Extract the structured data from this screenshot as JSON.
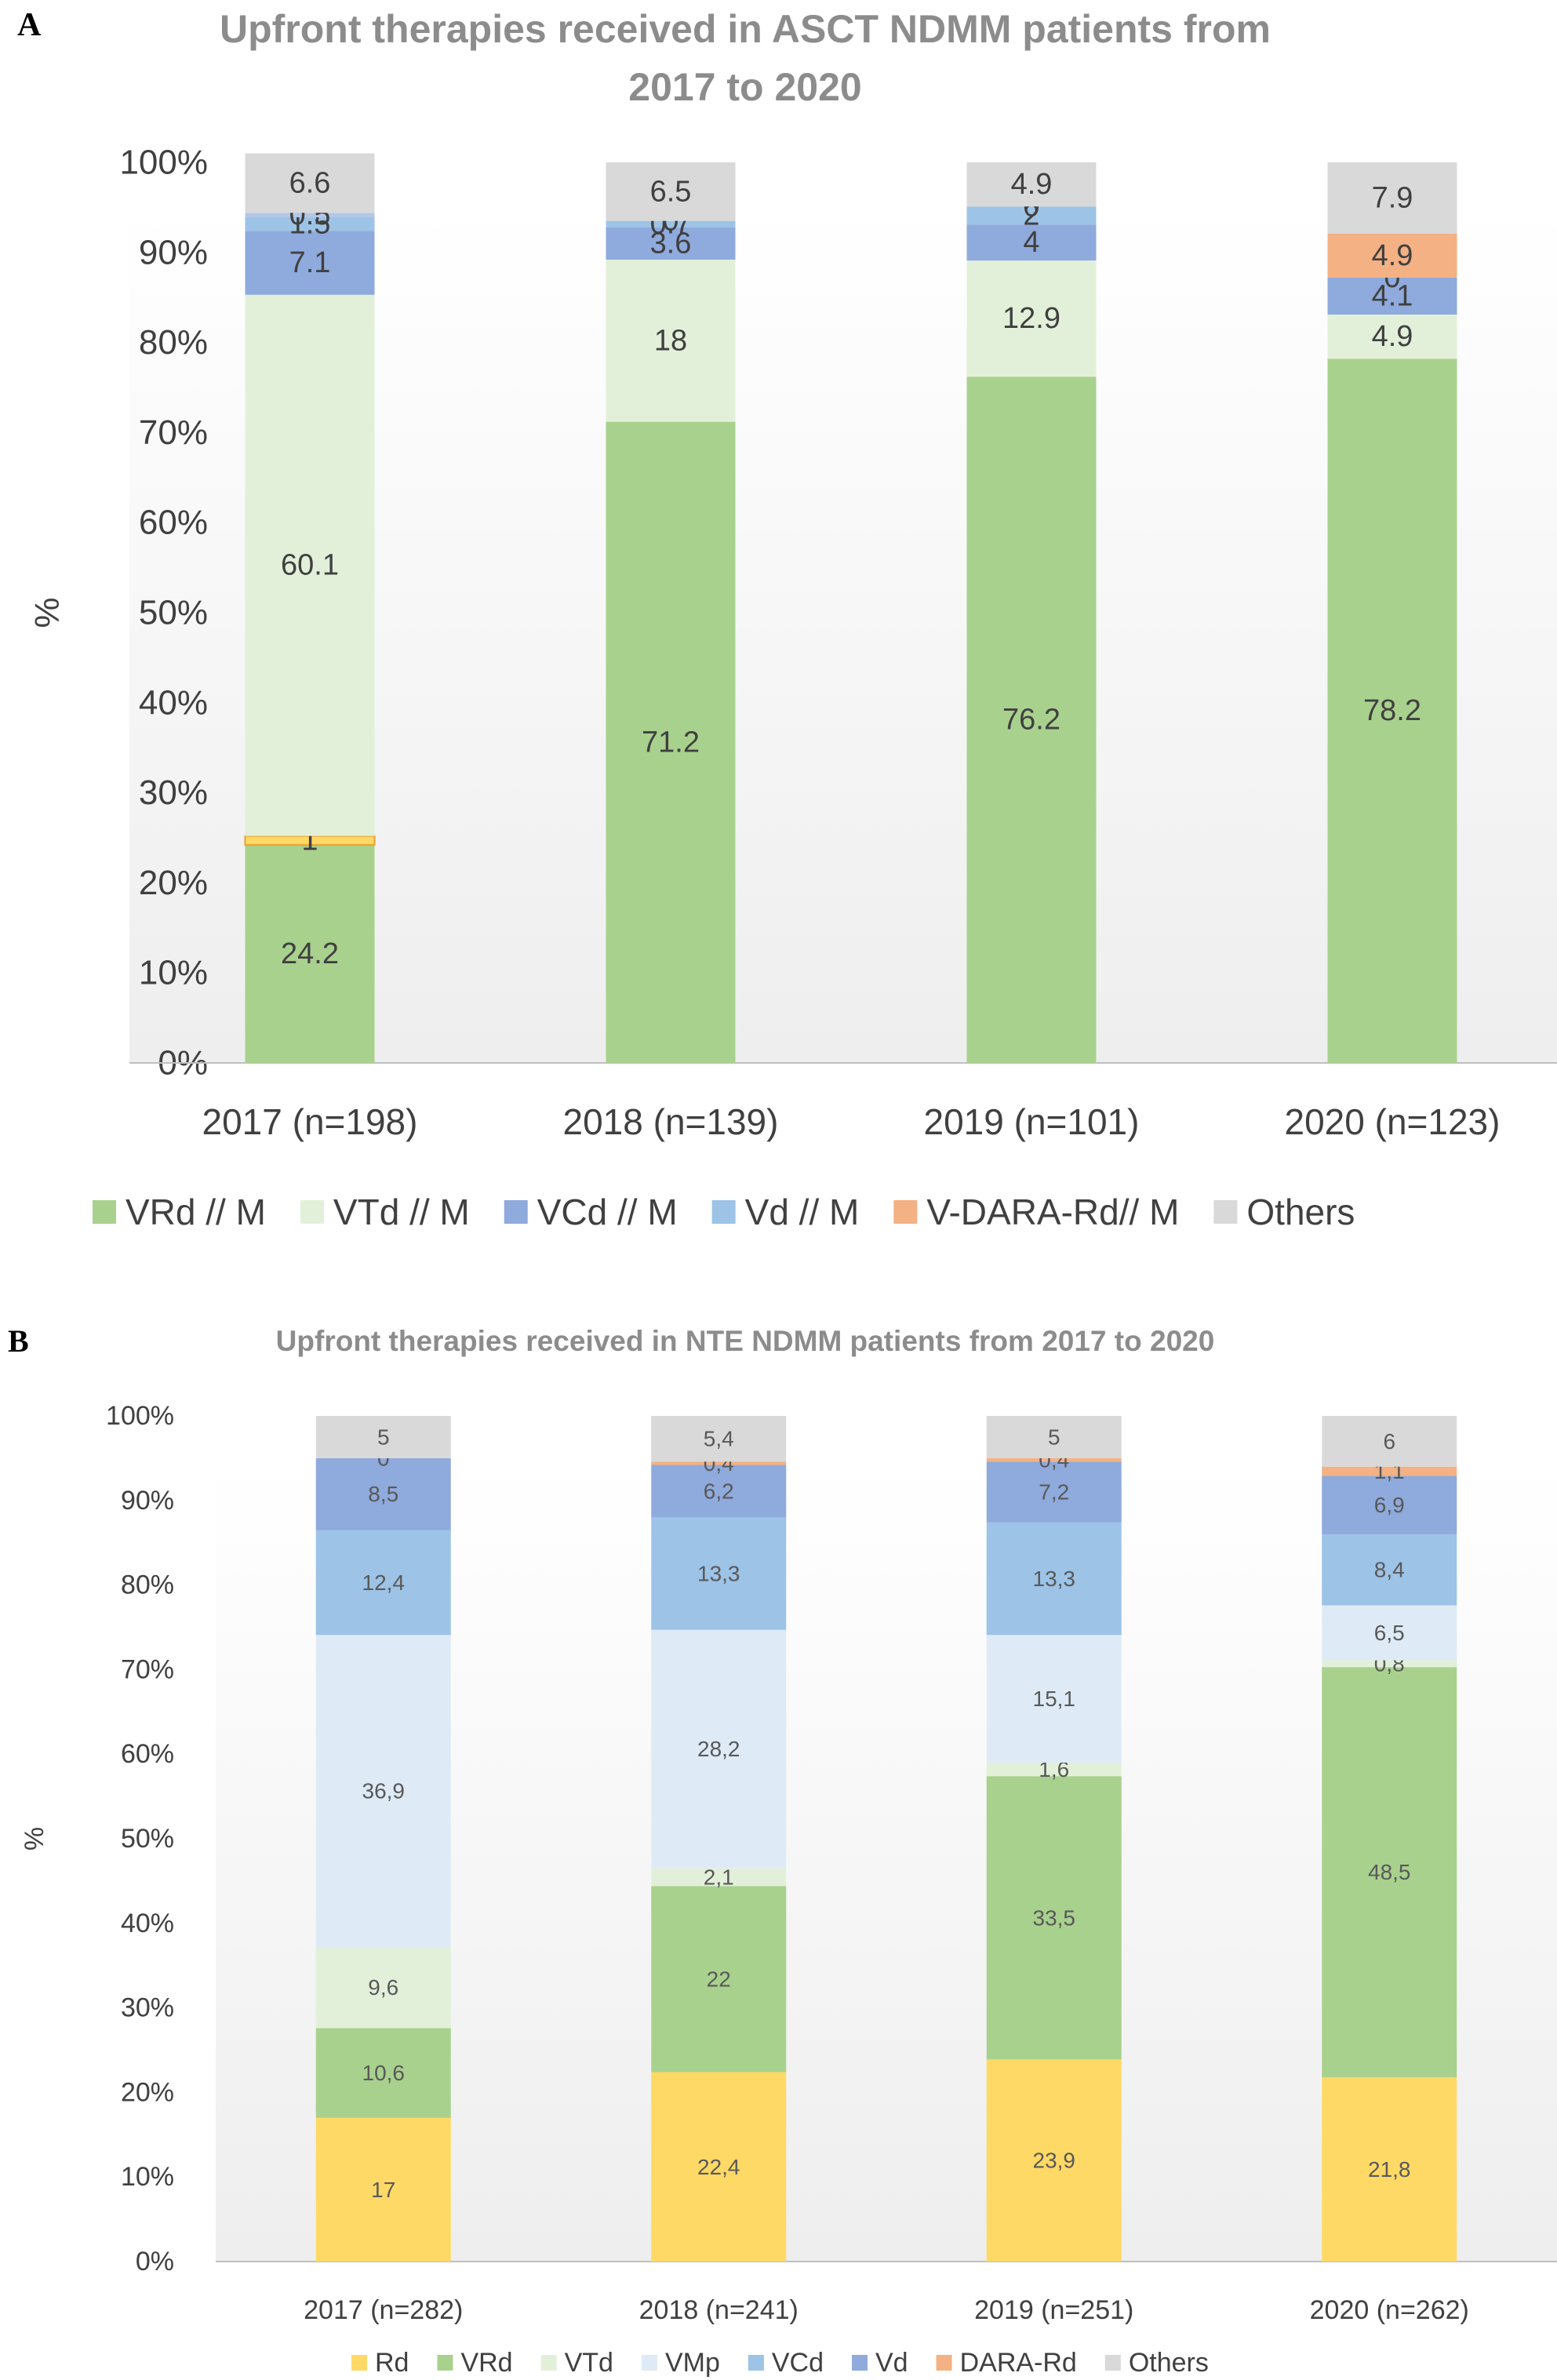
{
  "charts": [
    {
      "panel_label": "A",
      "chart_data": {
        "type": "bar",
        "stacked": true,
        "title": "Upfront therapies received in ASCT NDMM patients from 2017 to 2020",
        "title_lines": [
          "Upfront therapies received in ASCT NDMM patients from",
          "2017 to 2020"
        ],
        "xlabel": "",
        "ylabel": "%",
        "ylim": [
          0,
          100
        ],
        "yticks": [
          "0%",
          "10%",
          "20%",
          "30%",
          "40%",
          "50%",
          "60%",
          "70%",
          "80%",
          "90%",
          "100%"
        ],
        "categories": [
          "2017 (n=198)",
          "2018 (n=139)",
          "2019 (n=101)",
          "2020 (n=123)"
        ],
        "legend_position": "bottom",
        "series": [
          {
            "name": "VRd // M",
            "color": "#a9d18e",
            "values": [
              24.2,
              71.2,
              76.2,
              78.2
            ],
            "labels": [
              "24.2",
              "71.2",
              "76.2",
              "78.2"
            ],
            "in_legend": true
          },
          {
            "name": "",
            "color": "#ffd966",
            "values": [
              1,
              0,
              0,
              0
            ],
            "labels": [
              "1",
              "",
              "",
              ""
            ],
            "in_legend": false
          },
          {
            "name": "VTd // M",
            "color": "#e2f0d9",
            "values": [
              60.1,
              18,
              12.9,
              4.9
            ],
            "labels": [
              "60.1",
              "18",
              "12.9",
              "4.9"
            ],
            "in_legend": true
          },
          {
            "name": "VCd // M",
            "color": "#8faadc",
            "values": [
              7.1,
              3.6,
              4,
              4.1
            ],
            "labels": [
              "7.1",
              "3.6",
              "4",
              "4.1"
            ],
            "in_legend": true
          },
          {
            "name": "Vd // M",
            "color": "#9dc3e6",
            "values": [
              1.5,
              0.7,
              2,
              0
            ],
            "labels": [
              "1.5",
              "0.7",
              "2",
              "0"
            ],
            "in_legend": true
          },
          {
            "name": "",
            "color": "#b4c7e7",
            "values": [
              0.5,
              0,
              0,
              0
            ],
            "labels": [
              "0.5",
              "0",
              "0",
              ""
            ],
            "in_legend": false
          },
          {
            "name": "V-DARA-Rd// M",
            "color": "#f4b183",
            "values": [
              0,
              0,
              0,
              4.9
            ],
            "labels": [
              "",
              "",
              "",
              "4.9"
            ],
            "in_legend": true
          },
          {
            "name": "Others",
            "color": "#d9d9d9",
            "values": [
              6.6,
              6.5,
              4.9,
              7.9
            ],
            "labels": [
              "6.6",
              "6.5",
              "4.9",
              "7.9"
            ],
            "in_legend": true
          }
        ]
      }
    },
    {
      "panel_label": "B",
      "chart_data": {
        "type": "bar",
        "stacked": true,
        "title": "Upfront therapies received in NTE NDMM patients from 2017 to 2020",
        "title_lines": [
          "Upfront therapies received in NTE NDMM patients from 2017 to 2020"
        ],
        "xlabel": "",
        "ylabel": "%",
        "ylim": [
          0,
          100
        ],
        "yticks": [
          "0%",
          "10%",
          "20%",
          "30%",
          "40%",
          "50%",
          "60%",
          "70%",
          "80%",
          "90%",
          "100%"
        ],
        "categories": [
          "2017 (n=282)",
          "2018 (n=241)",
          "2019 (n=251)",
          "2020 (n=262)"
        ],
        "legend_position": "bottom",
        "series": [
          {
            "name": "Rd",
            "color": "#ffd966",
            "values": [
              17,
              22.4,
              23.9,
              21.8
            ],
            "labels": [
              "17",
              "22,4",
              "23,9",
              "21,8"
            ],
            "in_legend": true
          },
          {
            "name": "VRd",
            "color": "#a9d18e",
            "values": [
              10.6,
              22,
              33.5,
              48.5
            ],
            "labels": [
              "10,6",
              "22",
              "33,5",
              "48,5"
            ],
            "in_legend": true
          },
          {
            "name": "VTd",
            "color": "#e2f0d9",
            "values": [
              9.6,
              2.1,
              1.6,
              0.8
            ],
            "labels": [
              "9,6",
              "2,1",
              "1,6",
              "0,8"
            ],
            "in_legend": true
          },
          {
            "name": "VMp",
            "color": "#deebf7",
            "values": [
              36.9,
              28.2,
              15.1,
              6.5
            ],
            "labels": [
              "36,9",
              "28,2",
              "15,1",
              "6,5"
            ],
            "in_legend": true
          },
          {
            "name": "VCd",
            "color": "#9dc3e6",
            "values": [
              12.4,
              13.3,
              13.3,
              8.4
            ],
            "labels": [
              "12,4",
              "13,3",
              "13,3",
              "8,4"
            ],
            "in_legend": true
          },
          {
            "name": "Vd",
            "color": "#8faadc",
            "values": [
              8.5,
              6.2,
              7.2,
              6.9
            ],
            "labels": [
              "8,5",
              "6,2",
              "7,2",
              "6,9"
            ],
            "in_legend": true
          },
          {
            "name": "DARA-Rd",
            "color": "#f4b183",
            "values": [
              0,
              0.4,
              0.4,
              1.1
            ],
            "labels": [
              "0",
              "0,4",
              "0,4",
              "1,1"
            ],
            "in_legend": true
          },
          {
            "name": "Others",
            "color": "#d9d9d9",
            "values": [
              5,
              5.4,
              5,
              6
            ],
            "labels": [
              "5",
              "5,4",
              "5",
              "6"
            ],
            "in_legend": true
          }
        ]
      }
    }
  ]
}
